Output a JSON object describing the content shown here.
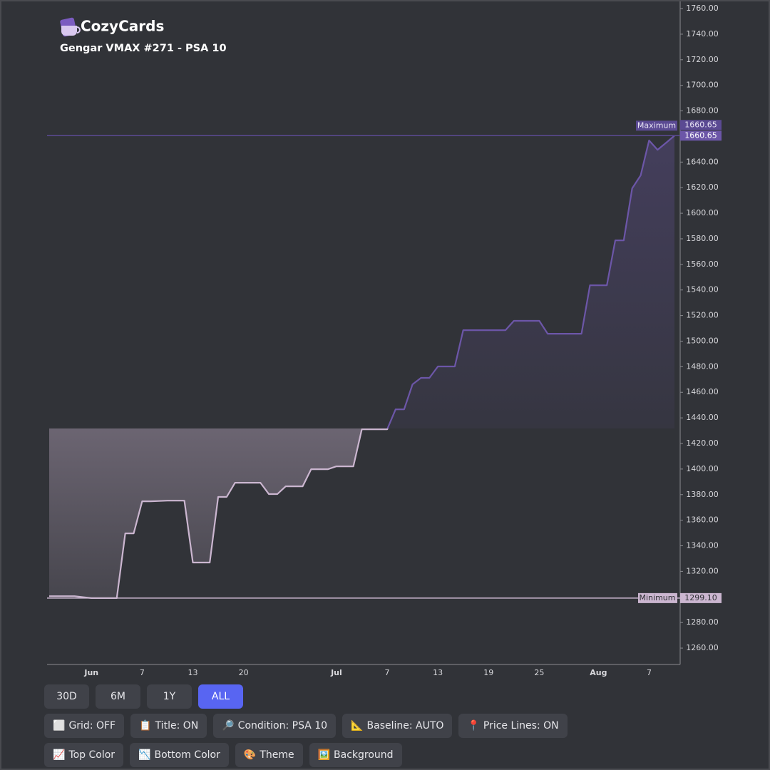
{
  "header": {
    "brand": "CozyCards",
    "title": "Gengar VMAX #271 - PSA 10"
  },
  "chart_data": {
    "type": "baseline-area",
    "categories": [
      null,
      null,
      null,
      null,
      null,
      "Jun",
      null,
      null,
      null,
      null,
      null,
      "7",
      null,
      null,
      null,
      null,
      null,
      "13",
      null,
      null,
      null,
      null,
      null,
      "20",
      null,
      null,
      null,
      null,
      null,
      null,
      null,
      null,
      null,
      null,
      "Jul",
      null,
      null,
      null,
      null,
      null,
      "7",
      null,
      null,
      null,
      null,
      null,
      "13",
      null,
      null,
      null,
      null,
      null,
      "19",
      null,
      null,
      null,
      null,
      null,
      "25",
      null,
      null,
      null,
      null,
      null,
      null,
      "Aug",
      null,
      null,
      null,
      null,
      null,
      "7",
      null,
      null,
      null
    ],
    "series": [
      {
        "top_color": "#6c56a8",
        "bottom_color": "#cbb6d0",
        "values": [
          1300.6,
          1300.6,
          1300.6,
          1300.6,
          1299.8,
          1299.1,
          1299.1,
          1299.1,
          1299.1,
          1349.7,
          1349.7,
          1374.8,
          1374.8,
          1375,
          1375.3,
          1375.3,
          1375.3,
          1326.9,
          1326.9,
          1326.9,
          1378.2,
          1378.2,
          1389.3,
          1389.3,
          1389.3,
          1389.3,
          1380.4,
          1380.4,
          1386.5,
          1386.5,
          1386.5,
          1399.9,
          1399.9,
          1399.9,
          1402.1,
          1402.1,
          1402.1,
          1431.1,
          1431.1,
          1431.1,
          1431.1,
          1446.7,
          1446.7,
          1466.2,
          1471.3,
          1471.3,
          1480.2,
          1480.2,
          1480.2,
          1508.6,
          1508.6,
          1508.6,
          1508.6,
          1508.6,
          1508.6,
          1515.9,
          1515.9,
          1515.9,
          1515.9,
          1505.8,
          1505.8,
          1505.8,
          1505.8,
          1505.8,
          1543.7,
          1543.7,
          1543.7,
          1578.8,
          1578.8,
          1619.5,
          1629.6,
          1656.9,
          1649.6,
          1655,
          1660.65
        ]
      }
    ],
    "baseline": 1431.7,
    "ylim": [
      1247.2,
      1765.6
    ],
    "yticks": [
      {
        "value": 1260,
        "label": "1260.00"
      },
      {
        "value": 1280,
        "label": "1280.00"
      },
      {
        "value": 1300,
        "label": "1300.00"
      },
      {
        "value": 1320,
        "label": "1320.00"
      },
      {
        "value": 1340,
        "label": "1340.00"
      },
      {
        "value": 1360,
        "label": "1360.00"
      },
      {
        "value": 1380,
        "label": "1380.00"
      },
      {
        "value": 1400,
        "label": "1400.00"
      },
      {
        "value": 1420,
        "label": "1420.00"
      },
      {
        "value": 1440,
        "label": "1440.00"
      },
      {
        "value": 1460,
        "label": "1460.00"
      },
      {
        "value": 1480,
        "label": "1480.00"
      },
      {
        "value": 1500,
        "label": "1500.00"
      },
      {
        "value": 1520,
        "label": "1520.00"
      },
      {
        "value": 1540,
        "label": "1540.00"
      },
      {
        "value": 1560,
        "label": "1560.00"
      },
      {
        "value": 1580,
        "label": "1580.00"
      },
      {
        "value": 1600,
        "label": "1600.00"
      },
      {
        "value": 1620,
        "label": "1620.00"
      },
      {
        "value": 1640,
        "label": "1640.00"
      },
      {
        "value": 1660,
        "label": "1660.00"
      },
      {
        "value": 1680,
        "label": "1680.00"
      },
      {
        "value": 1700,
        "label": "1700.00"
      },
      {
        "value": 1720,
        "label": "1720.00"
      },
      {
        "value": 1740,
        "label": "1740.00"
      },
      {
        "value": 1760,
        "label": "1760.00"
      }
    ],
    "grid": false,
    "price_lines": [
      {
        "title": "Maximum",
        "value": 1660.65,
        "color": "#5b4a93",
        "text_color": "#e8e4f4"
      },
      {
        "title": "Minimum",
        "value": 1299.1,
        "label": "1299.10",
        "color": "#cbb6d0",
        "text_color": "#2f3035"
      }
    ]
  },
  "controls": {
    "ranges": [
      "30D",
      "6M",
      "1Y",
      "ALL"
    ],
    "active_range": 3,
    "toggles": [
      {
        "icon": "⬜",
        "label": "Grid: OFF"
      },
      {
        "icon": "📋",
        "label": "Title: ON"
      },
      {
        "icon": "🔎",
        "label": "Condition: PSA 10"
      },
      {
        "icon": "📐",
        "label": "Baseline: AUTO"
      },
      {
        "icon": "📍",
        "label": "Price Lines: ON"
      }
    ],
    "actions": [
      {
        "icon": "📈",
        "label": "Top Color"
      },
      {
        "icon": "📉",
        "label": "Bottom Color"
      },
      {
        "icon": "🎨",
        "label": "Theme"
      },
      {
        "icon": "🖼️",
        "label": "Background"
      }
    ]
  }
}
